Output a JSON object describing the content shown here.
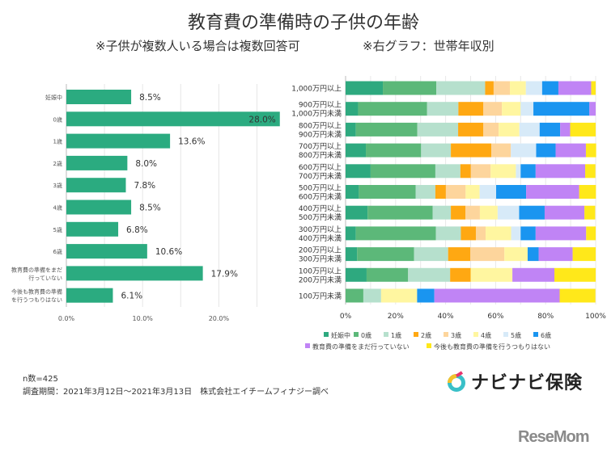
{
  "header": {
    "title": "教育費の準備時の子供の年齢",
    "note_left": "※子供が複数人いる場合は複数回答可",
    "note_right": "※右グラフ：世帯年収別"
  },
  "chart_data": [
    {
      "type": "bar",
      "orientation": "horizontal",
      "categories": [
        "妊娠中",
        "0歳",
        "1歳",
        "2歳",
        "3歳",
        "4歳",
        "5歳",
        "6歳",
        "教育費の準備をまだ行っていない",
        "今後も教育費の準備を行うつもりはない"
      ],
      "values": [
        8.5,
        28.0,
        13.6,
        8.0,
        7.8,
        8.5,
        6.8,
        10.6,
        17.9,
        6.1
      ],
      "data_labels": [
        "8.5%",
        "28.0%",
        "13.6%",
        "8.0%",
        "7.8%",
        "8.5%",
        "6.8%",
        "10.6%",
        "17.9%",
        "6.1%"
      ],
      "xlim": [
        0,
        28
      ],
      "x_ticks": [
        "0.0%",
        "10.0%",
        "20.0%"
      ],
      "grid": true,
      "color": "#2bab80"
    },
    {
      "type": "bar",
      "orientation": "horizontal",
      "stacked": "percent",
      "categories": [
        "1,000万円以上",
        "900万円以上\n1,000万円未満",
        "800万円以上\n900万円未満",
        "700万円以上\n800万円未満",
        "600万円以上\n700万円未満",
        "500万円以上\n600万円未満",
        "400万円以上\n500万円未満",
        "300万円以上\n400万円未満",
        "200万円以上\n300万円未満",
        "100万円以上\n200万円未満",
        "100万円未満"
      ],
      "series": [
        {
          "name": "妊娠中",
          "color": "#2ea97f",
          "values": [
            14.9,
            5.0,
            4.1,
            8.1,
            10.0,
            5.3,
            8.8,
            4.1,
            4.6,
            8.4,
            0
          ]
        },
        {
          "name": "0歳",
          "color": "#5cb879",
          "values": [
            21.4,
            27.6,
            24.6,
            22.1,
            25.9,
            22.7,
            26.0,
            32.0,
            22.8,
            16.6,
            7.1
          ]
        },
        {
          "name": "1歳",
          "color": "#b6e0cd",
          "values": [
            19.5,
            12.5,
            16.3,
            11.9,
            10.0,
            7.9,
            7.3,
            10.0,
            13.6,
            16.8,
            7.1
          ]
        },
        {
          "name": "2歳",
          "color": "#ffa812",
          "values": [
            3.4,
            10.0,
            10.1,
            16.2,
            4.2,
            4.2,
            5.8,
            6.0,
            8.9,
            8.2,
            0
          ]
        },
        {
          "name": "3歳",
          "color": "#fdd59c",
          "values": [
            6.5,
            7.4,
            6.1,
            7.8,
            7.9,
            7.9,
            5.8,
            3.9,
            13.6,
            0,
            0
          ]
        },
        {
          "name": "4歳",
          "color": "#fff6a0",
          "values": [
            6.4,
            7.5,
            8.3,
            0,
            10.1,
            5.6,
            7.1,
            10.2,
            9.3,
            16.7,
            14.4
          ]
        },
        {
          "name": "5歳",
          "color": "#d7eaf8",
          "values": [
            6.5,
            5.1,
            8.1,
            10.1,
            1.9,
            6.6,
            8.6,
            3.8,
            0,
            0,
            0
          ]
        },
        {
          "name": "6歳",
          "color": "#1a95f0",
          "values": [
            6.5,
            22.4,
            8.2,
            7.8,
            6.0,
            12.0,
            10.2,
            6.0,
            4.4,
            0,
            6.9
          ]
        },
        {
          "name": "教育費の準備をまだ行っていない",
          "color": "#c084f5",
          "values": [
            13.1,
            2.5,
            4.0,
            12.1,
            19.8,
            21.2,
            15.9,
            20.2,
            13.6,
            16.8,
            50.1
          ]
        },
        {
          "name": "今後も教育費の準備を行うつもりはない",
          "color": "#ffe81a",
          "values": [
            1.8,
            0,
            10.2,
            4.1,
            4.1,
            6.7,
            4.3,
            3.8,
            9.2,
            16.5,
            14.3
          ]
        }
      ],
      "xlim": [
        0,
        100
      ],
      "x_ticks": [
        "0%",
        "20%",
        "40%",
        "60%",
        "80%",
        "100%"
      ],
      "grid": true,
      "legend": "bottom"
    }
  ],
  "footer": {
    "n": "n数=425",
    "period": "調査期間：2021年3月12日～2021年3月13日　株式会社エイチームフィナジー調べ"
  },
  "logos": {
    "brand": "ナビナビ保険",
    "site": "ReseMom"
  }
}
